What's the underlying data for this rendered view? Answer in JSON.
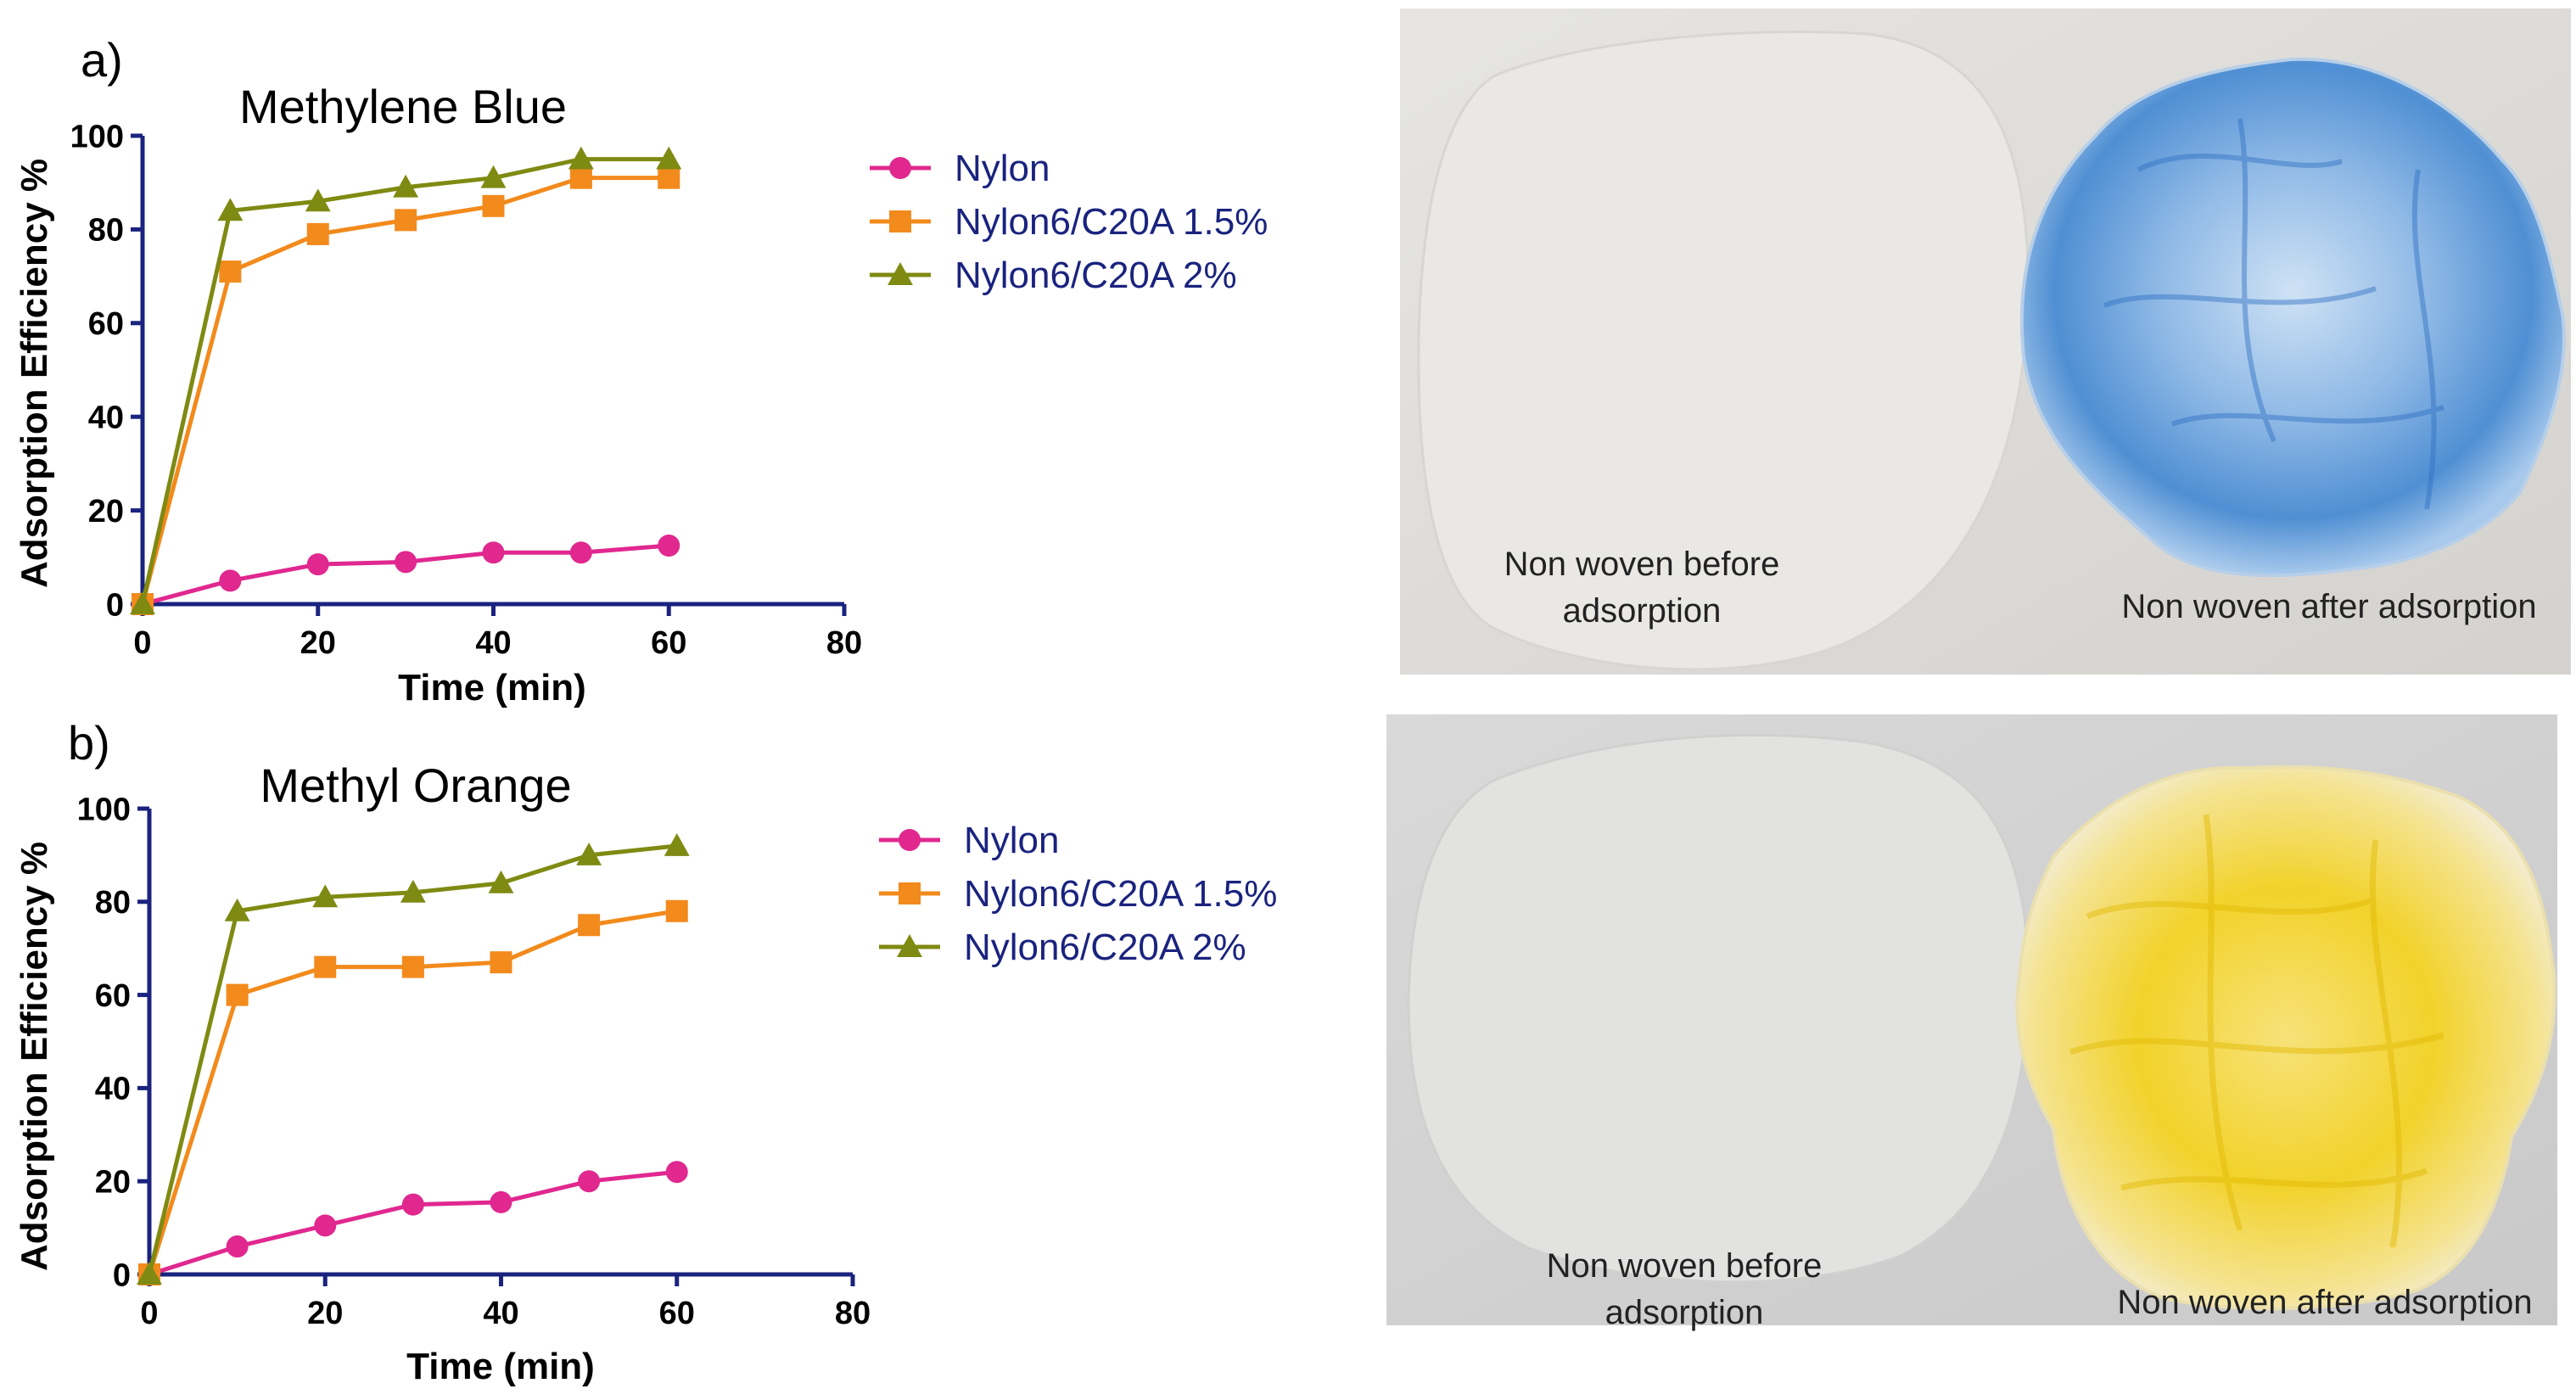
{
  "colors": {
    "axis": "#1a237e",
    "nylon": "#e0288f",
    "c20a_15": "#f28a1c",
    "c20a_2": "#7f8a12",
    "blue_dye": "#3a78c9",
    "yellow_dye": "#f2d22a"
  },
  "chart_data": [
    {
      "panel": "a)",
      "type": "line",
      "title": "Methylene Blue",
      "xlabel": "Time (min)",
      "ylabel": "Adsorption Efficiency %",
      "xlim": [
        0,
        80
      ],
      "ylim": [
        0,
        100
      ],
      "xticks": [
        "0",
        "20",
        "40",
        "60",
        "80"
      ],
      "yticks": [
        "0",
        "20",
        "40",
        "60",
        "80",
        "100"
      ],
      "legend_position": "right",
      "x": [
        0,
        10,
        20,
        30,
        40,
        50,
        60
      ],
      "series": [
        {
          "name": "Nylon",
          "marker": "circle",
          "color": "#e0288f",
          "values": [
            0,
            5,
            8.5,
            9,
            11,
            11,
            12.5
          ]
        },
        {
          "name": "Nylon6/C20A 1.5%",
          "marker": "square",
          "color": "#f28a1c",
          "values": [
            0,
            71,
            79,
            82,
            85,
            91,
            91
          ]
        },
        {
          "name": "Nylon6/C20A 2%",
          "marker": "triangle",
          "color": "#7f8a12",
          "values": [
            0,
            84,
            86,
            89,
            91,
            95,
            95
          ]
        }
      ]
    },
    {
      "panel": "b)",
      "type": "line",
      "title": "Methyl Orange",
      "xlabel": "Time (min)",
      "ylabel": "Adsorption Efficiency %",
      "xlim": [
        0,
        80
      ],
      "ylim": [
        0,
        100
      ],
      "xticks": [
        "0",
        "20",
        "40",
        "60",
        "80"
      ],
      "yticks": [
        "0",
        "20",
        "40",
        "60",
        "80",
        "100"
      ],
      "legend_position": "right",
      "x": [
        0,
        10,
        20,
        30,
        40,
        50,
        60
      ],
      "series": [
        {
          "name": "Nylon",
          "marker": "circle",
          "color": "#e0288f",
          "values": [
            0,
            6,
            10.5,
            15,
            15.5,
            20,
            22
          ]
        },
        {
          "name": "Nylon6/C20A 1.5%",
          "marker": "square",
          "color": "#f28a1c",
          "values": [
            0,
            60,
            66,
            66,
            67,
            75,
            78
          ]
        },
        {
          "name": "Nylon6/C20A 2%",
          "marker": "triangle",
          "color": "#7f8a12",
          "values": [
            0,
            78,
            81,
            82,
            84,
            90,
            92
          ]
        }
      ]
    }
  ],
  "photos": [
    {
      "left_caption_1": "Non woven before",
      "left_caption_2": "adsorption",
      "right_caption": "Non woven after adsorption"
    },
    {
      "left_caption_1": "Non woven before",
      "left_caption_2": "adsorption",
      "right_caption": "Non woven after adsorption"
    }
  ]
}
